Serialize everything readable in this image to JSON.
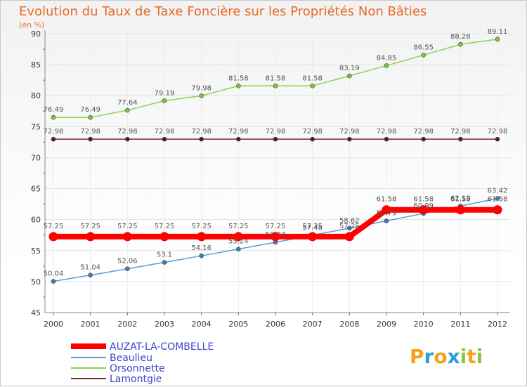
{
  "chart_data": {
    "type": "line",
    "title": "Evolution du Taux de Taxe Foncière sur les Propriétés Non Bâties",
    "subtitle": "(en %)",
    "xlabel": "",
    "ylabel": "",
    "x": [
      "2000",
      "2001",
      "2002",
      "2003",
      "2004",
      "2005",
      "2006",
      "2007",
      "2008",
      "2009",
      "2010",
      "2011",
      "2012"
    ],
    "ylim": [
      45,
      90
    ],
    "yticks": [
      45,
      50,
      55,
      60,
      65,
      70,
      75,
      80,
      85,
      90
    ],
    "grid": true,
    "legend_position": "bottom-left",
    "series": [
      {
        "name": "AUZAT-LA-COMBELLE",
        "color": "#ff0000",
        "values": [
          57.25,
          57.25,
          57.25,
          57.25,
          57.25,
          57.25,
          57.25,
          57.25,
          57.25,
          61.58,
          61.58,
          61.58,
          61.58
        ],
        "labels": [
          "57.25",
          "57.25",
          "57.25",
          "57.25",
          "57.25",
          "57.25",
          "57.25",
          "57.25",
          "57.25",
          "61.58",
          "61.58",
          "61.58",
          "61.58"
        ]
      },
      {
        "name": "Beaulieu",
        "color": "#5b9bd5",
        "values": [
          50.04,
          51.04,
          52.06,
          53.1,
          54.16,
          55.24,
          56.34,
          57.48,
          58.62,
          59.79,
          60.99,
          62.19,
          63.42
        ],
        "labels": [
          "50.04",
          "51.04",
          "52.06",
          "53.1",
          "54.16",
          "55.24",
          "56.34",
          "57.48",
          "58.62",
          "59.79",
          "60.99",
          "62.19",
          "63.42"
        ]
      },
      {
        "name": "Orsonnette",
        "color": "#8fd14f",
        "values": [
          76.49,
          76.49,
          77.64,
          79.19,
          79.98,
          81.58,
          81.58,
          81.58,
          83.19,
          84.85,
          86.55,
          88.28,
          89.11
        ],
        "labels": [
          "76.49",
          "76.49",
          "77.64",
          "79.19",
          "79.98",
          "81.58",
          "81.58",
          "81.58",
          "83.19",
          "84.85",
          "86.55",
          "88.28",
          "89.11"
        ]
      },
      {
        "name": "Lamontgie",
        "color": "#7b2a2a",
        "values": [
          72.98,
          72.98,
          72.98,
          72.98,
          72.98,
          72.98,
          72.98,
          72.98,
          72.98,
          72.98,
          72.98,
          72.98,
          72.98
        ],
        "labels": [
          "72.98",
          "72.98",
          "72.98",
          "72.98",
          "72.98",
          "72.98",
          "72.98",
          "72.98",
          "72.98",
          "72.98",
          "72.98",
          "72.98",
          "72.98"
        ]
      }
    ]
  },
  "brand": {
    "letters": [
      "P",
      "r",
      "o",
      "x",
      "i",
      "t",
      "i"
    ],
    "colors": [
      "#f5a21b",
      "#2aa0d8",
      "#f5a21b",
      "#2aa0d8",
      "#8cc63f",
      "#f5a21b",
      "#8cc63f"
    ]
  }
}
